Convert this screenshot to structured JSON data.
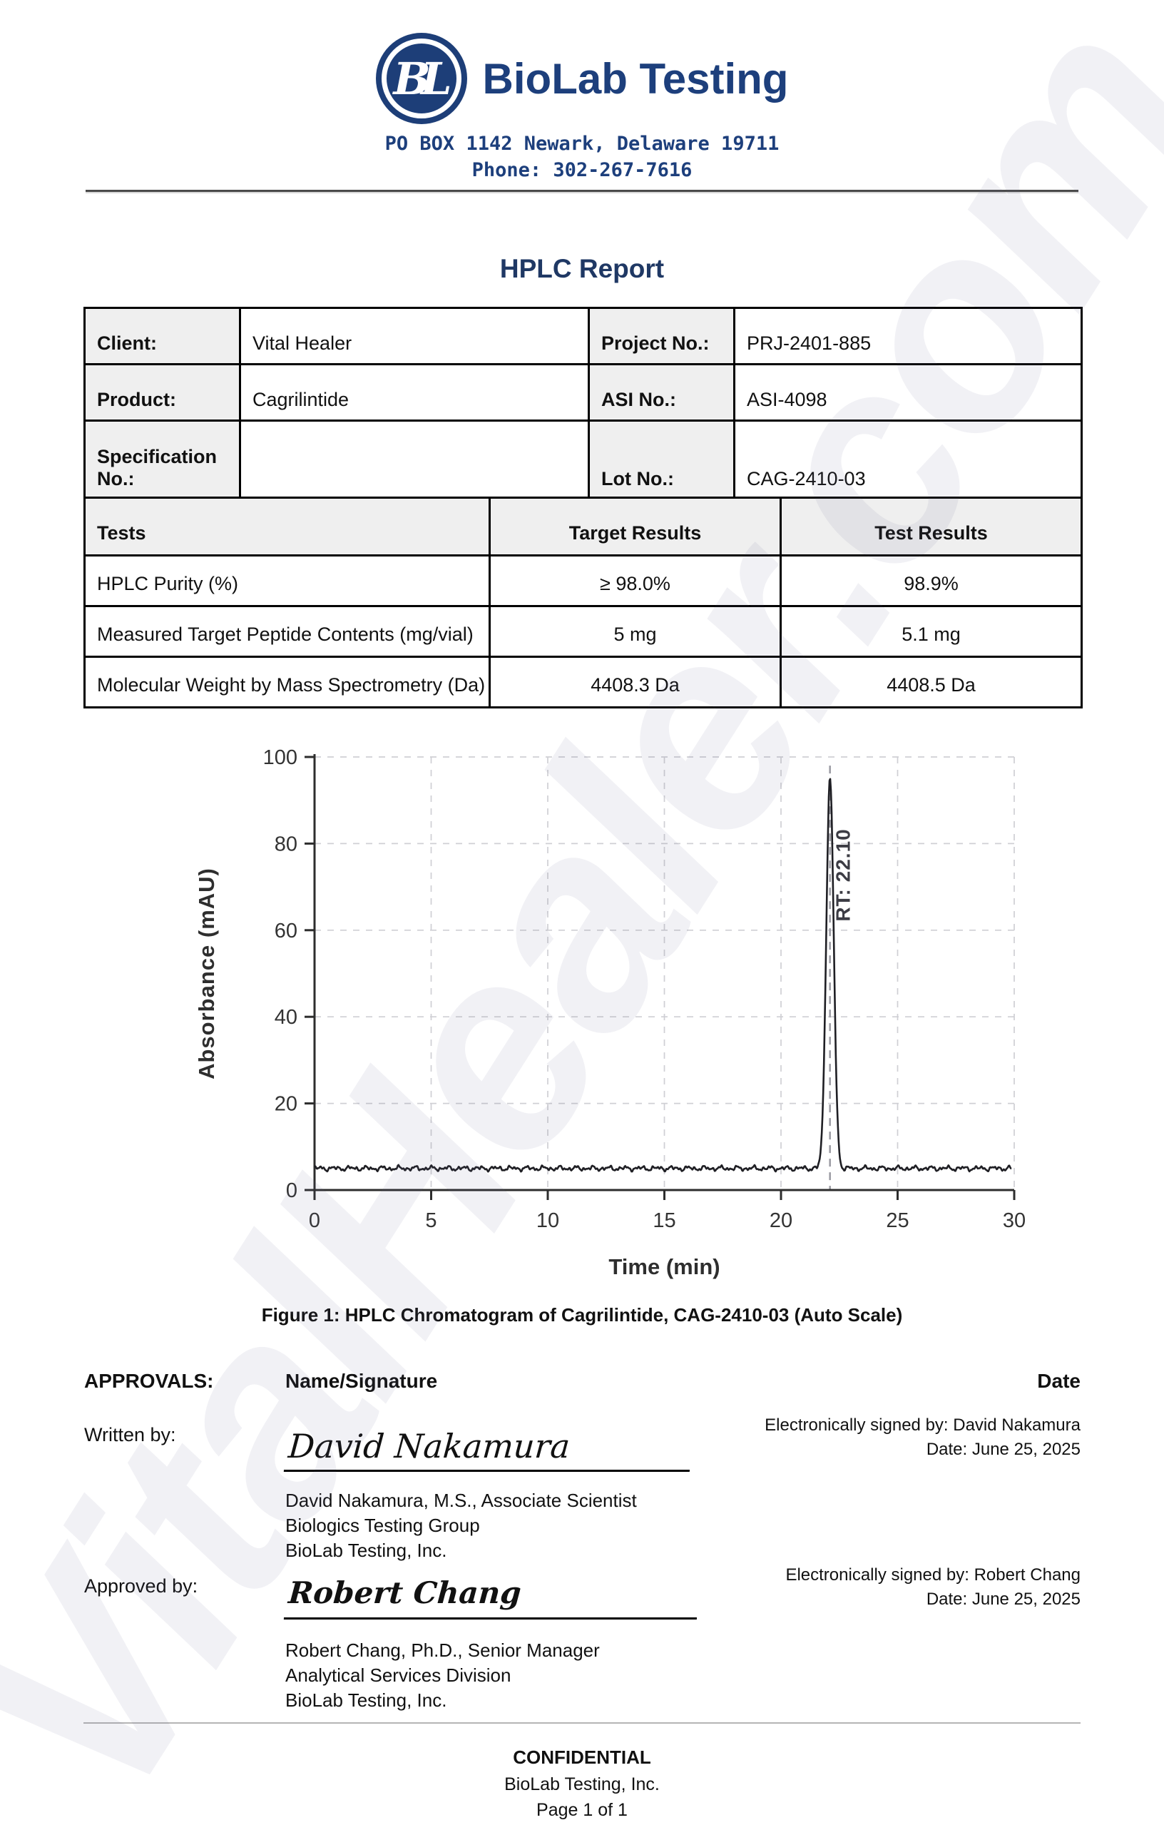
{
  "header": {
    "logo_text": "BL",
    "company": "BioLab Testing",
    "address": "PO BOX 1142 Newark, Delaware 19711",
    "phone": "Phone: 302-267-7616"
  },
  "title": "HPLC Report",
  "info_table": {
    "rows": [
      {
        "label1": "Client:",
        "value1": "Vital Healer",
        "label2": "Project No.:",
        "value2": "PRJ-2401-885"
      },
      {
        "label1": "Product:",
        "value1": "Cagrilintide",
        "label2": "ASI No.:",
        "value2": "ASI-4098"
      },
      {
        "label1": "Specification No.:",
        "value1": "",
        "label2": "Lot No.:",
        "value2": "CAG-2410-03"
      }
    ]
  },
  "tests_table": {
    "headers": [
      "Tests",
      "Target Results",
      "Test Results"
    ],
    "rows": [
      [
        "HPLC Purity (%)",
        "≥ 98.0%",
        "98.9%"
      ],
      [
        "Measured Target Peptide Contents (mg/vial)",
        "5 mg",
        "5.1 mg"
      ],
      [
        "Molecular Weight by Mass Spectrometry (Da)",
        "4408.3 Da",
        "4408.5 Da"
      ]
    ]
  },
  "chart_data": {
    "type": "line",
    "title": "",
    "xlabel": "Time (min)",
    "ylabel": "Absorbance (mAU)",
    "xlim": [
      0,
      30
    ],
    "ylim": [
      0,
      100
    ],
    "xticks": [
      0,
      5,
      10,
      15,
      20,
      25,
      30
    ],
    "yticks": [
      0,
      20,
      40,
      60,
      80,
      100
    ],
    "grid": "dashed",
    "legend": "none",
    "series": [
      {
        "name": "chromatogram",
        "description": "flat baseline at ~5 mAU with minor noise and a single sharp peak",
        "baseline_mau": 5,
        "peak_rt_min": 22.1,
        "peak_top_mau": 95,
        "peak_sigma_min": 0.16
      }
    ],
    "peak_label": "RT: 22.10"
  },
  "figure_caption": "Figure 1: HPLC Chromatogram of Cagrilintide, CAG-2410-03 (Auto Scale)",
  "approvals": {
    "heading": "APPROVALS:",
    "name_signature_header": "Name/Signature",
    "date_header": "Date",
    "entries": [
      {
        "role": "Written by:",
        "signature": "David Nakamura",
        "esign": "Electronically signed by: David Nakamura",
        "date": "Date: June 25, 2025",
        "line1": "David Nakamura, M.S., Associate Scientist",
        "line2": "Biologics Testing Group",
        "line3": "BioLab Testing, Inc."
      },
      {
        "role": "Approved by:",
        "signature": "Robert Chang",
        "esign": "Electronically signed by: Robert Chang",
        "date": "Date: June 25, 2025",
        "line1": "Robert Chang, Ph.D., Senior Manager",
        "line2": "Analytical Services Division",
        "line3": "BioLab Testing, Inc."
      }
    ]
  },
  "footer": {
    "confidential": "CONFIDENTIAL",
    "company": "BioLab Testing, Inc.",
    "page": "Page 1 of 1"
  },
  "watermark": "VitalHealer.com",
  "colors": {
    "brand_blue": "#1d3f7c",
    "title_navy": "#1f3864",
    "label_cell_bg": "#efefef",
    "table_border": "#000000",
    "grid_line": "#cfcfd4",
    "axis_line": "#2d2d2d",
    "curve": "#1f1f24",
    "rt_line": "#9a9aa2",
    "watermark_tint": "rgba(98,98,148,0.09)"
  }
}
